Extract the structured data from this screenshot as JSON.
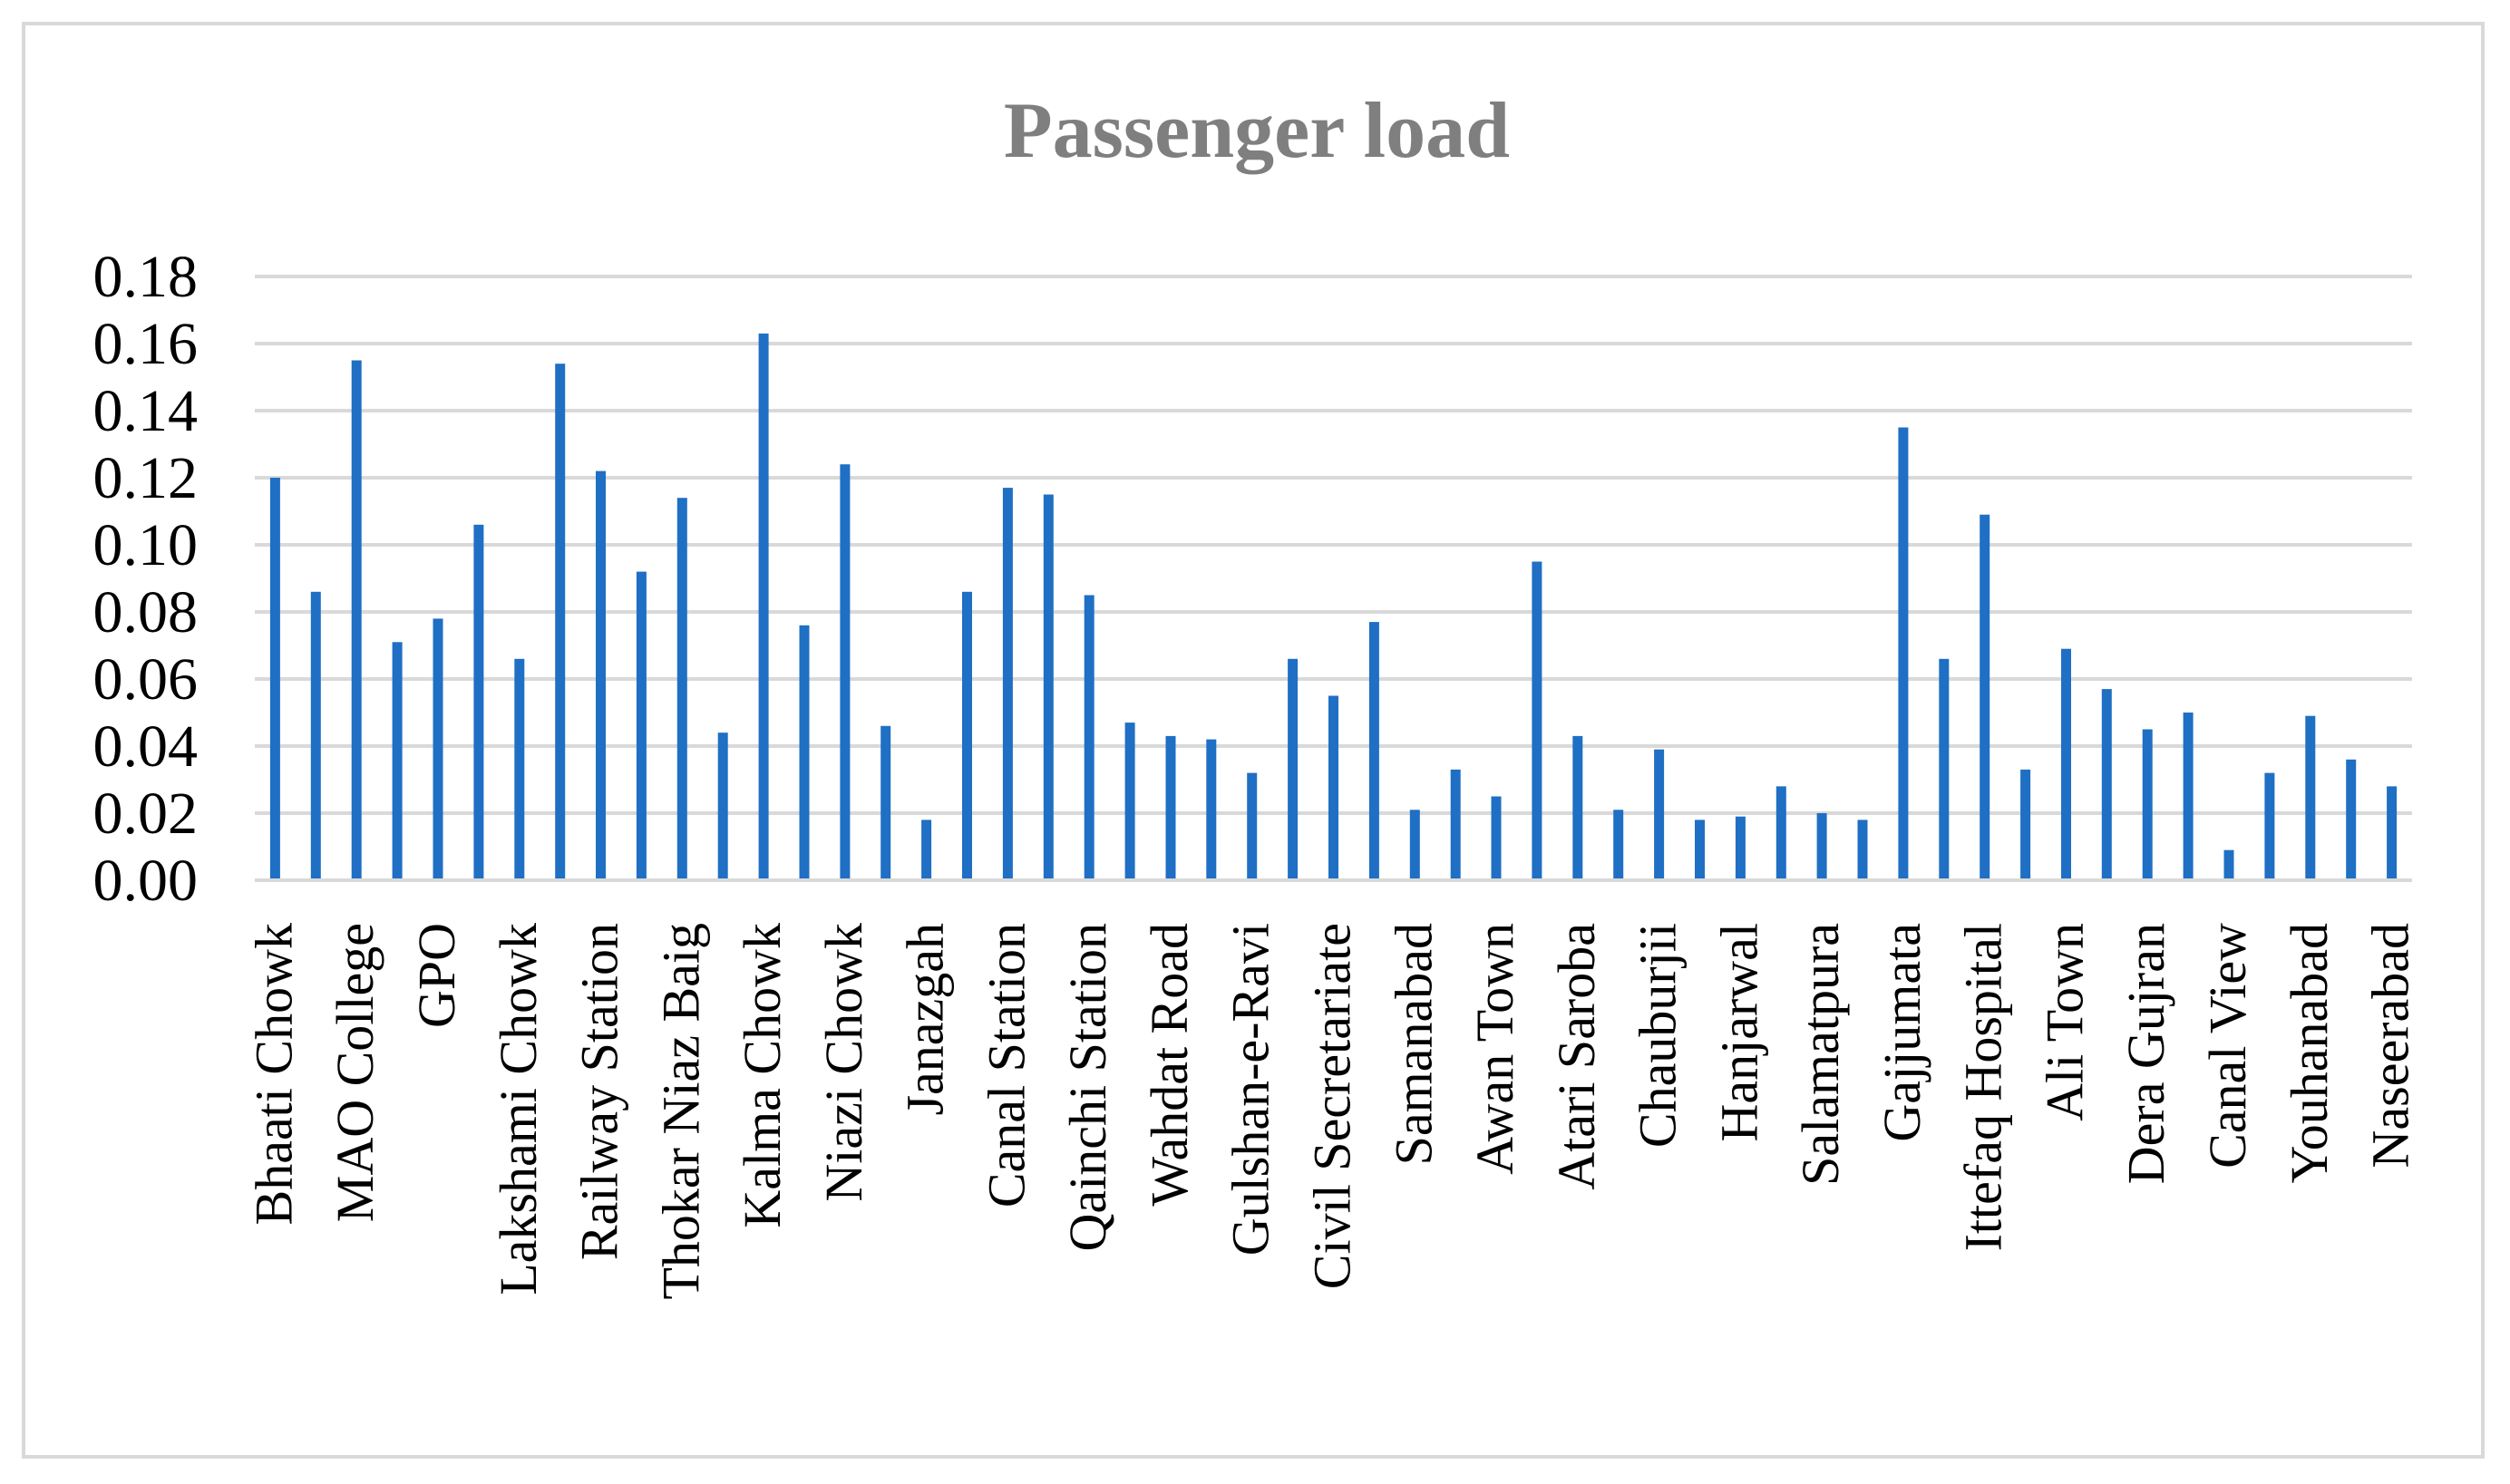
{
  "chart_data": {
    "type": "bar",
    "title": "Passenger load",
    "xlabel": "",
    "ylabel": "",
    "ylim": [
      0,
      0.18
    ],
    "ytick_labels": [
      "0.00",
      "0.02",
      "0.04",
      "0.06",
      "0.08",
      "0.10",
      "0.12",
      "0.14",
      "0.16",
      "0.18"
    ],
    "grid": true,
    "categories": [
      "Bhaati Chowk",
      "",
      "MAO College",
      "",
      "GPO",
      "",
      "Lakshami Chowk",
      "",
      "Railway Station",
      "",
      "Thokar Niaz Baig",
      "",
      "Kalma Chowk",
      "",
      "Niazi Chowk",
      "",
      "Janazgah",
      "",
      "Canal Station",
      "",
      "Qainchi Station",
      "",
      "Wahdat Road",
      "",
      "Gulshan-e-Ravi",
      "",
      "Civil Secretariate",
      "",
      "Samanabad",
      "",
      "Awan Town",
      "",
      "Atari Saroba",
      "",
      "Chauburjii",
      "",
      "Hanjarwal",
      "",
      "Salamatpura",
      "",
      "Gajjumata",
      "",
      "Ittefaq Hospital",
      "",
      "Ali Town",
      "",
      "Dera Gujran",
      "",
      "Canal View",
      "",
      "Youhanabad",
      "",
      "Naseerabad"
    ],
    "values": [
      0.12,
      0.086,
      0.155,
      0.071,
      0.078,
      0.106,
      0.066,
      0.154,
      0.122,
      0.092,
      0.114,
      0.044,
      0.163,
      0.076,
      0.124,
      0.046,
      0.018,
      0.086,
      0.117,
      0.115,
      0.085,
      0.047,
      0.043,
      0.042,
      0.032,
      0.066,
      0.055,
      0.077,
      0.021,
      0.033,
      0.025,
      0.095,
      0.043,
      0.021,
      0.039,
      0.018,
      0.019,
      0.028,
      0.02,
      0.018,
      0.135,
      0.066,
      0.109,
      0.033,
      0.069,
      0.057,
      0.045,
      0.05,
      0.009,
      0.032,
      0.049,
      0.036,
      0.028
    ],
    "series_color": "#1f6fc4"
  }
}
